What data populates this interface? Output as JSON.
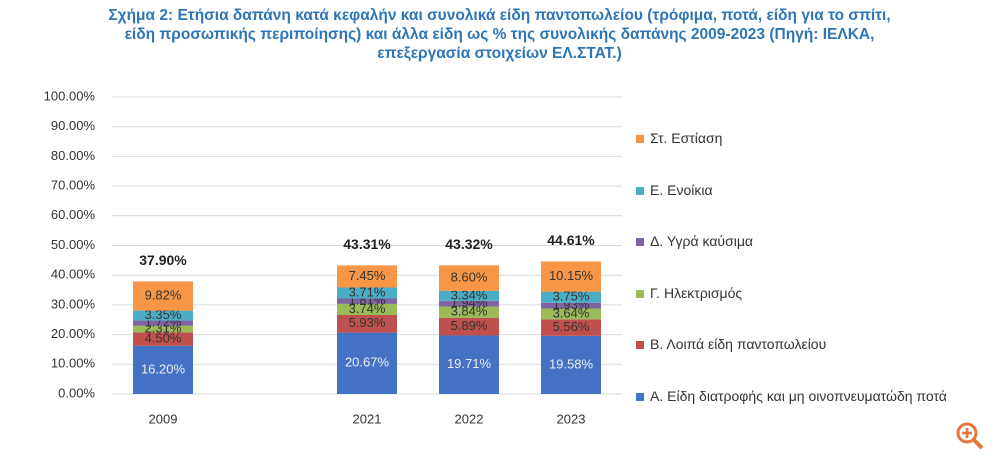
{
  "chart_data": {
    "type": "stacked_bar",
    "title_lines": [
      "Σχήμα 2: Ετήσια δαπάνη κατά κεφαλήν και συνολικά είδη παντοπωλείου (τρόφιμα, ποτά, είδη για το σπίτι,",
      "είδη προσωπικής περιποίησης) και άλλα είδη ως % της συνολικής δαπάνης 2009-2023 (Πηγή: ΙΕΛΚΑ,",
      "επεξεργασία στοιχείων ΕΛ.ΣΤΑΤ.)"
    ],
    "categories": [
      "2009",
      null,
      "2021",
      "2022",
      "2023"
    ],
    "series": [
      {
        "name": "Α. Είδη διατροφής και μη οινοπνευματώδη ποτά",
        "color": "#4472c4",
        "values": [
          16.2,
          null,
          20.67,
          19.71,
          19.58
        ],
        "value_labels": [
          "16.20%",
          null,
          "20.67%",
          "19.71%",
          "19.58%"
        ]
      },
      {
        "name": "Β. Λοιπά είδη παντοπωλείου",
        "color": "#c0504d",
        "values": [
          4.5,
          null,
          5.93,
          5.89,
          5.56
        ],
        "value_labels": [
          "4.50%",
          null,
          "5.93%",
          "5.89%",
          "5.56%"
        ]
      },
      {
        "name": "Γ. Ηλεκτρισμός",
        "color": "#9bbb59",
        "values": [
          2.31,
          null,
          3.74,
          3.84,
          3.64
        ],
        "value_labels": [
          "2.31%",
          null,
          "3.74%",
          "3.84%",
          "3.64%"
        ]
      },
      {
        "name": "Δ. Υγρά καύσιμα",
        "color": "#8064a2",
        "values": [
          1.72,
          null,
          1.81,
          1.94,
          1.93
        ],
        "value_labels": [
          "1.72%",
          null,
          "1.81%",
          "1.94%",
          "1.93%"
        ]
      },
      {
        "name": "Ε. Ενοίκια",
        "color": "#4bacc6",
        "values": [
          3.35,
          null,
          3.71,
          3.34,
          3.75
        ],
        "value_labels": [
          "3.35%",
          null,
          "3.71%",
          "3.34%",
          "3.75%"
        ]
      },
      {
        "name": "Στ. Εστίαση",
        "color": "#f79646",
        "values": [
          9.82,
          null,
          7.45,
          8.6,
          10.15
        ],
        "value_labels": [
          "9.82%",
          null,
          "7.45%",
          "8.60%",
          "10.15%"
        ]
      }
    ],
    "totals": [
      37.9,
      null,
      43.31,
      43.32,
      44.61
    ],
    "total_labels": [
      "37.90%",
      null,
      "43.31%",
      "43.32%",
      "44.61%"
    ],
    "ylim": [
      0,
      100
    ],
    "yticks": [
      {
        "value": 0,
        "label": "0.00%"
      },
      {
        "value": 10,
        "label": "10.00%"
      },
      {
        "value": 20,
        "label": "20.00%"
      },
      {
        "value": 30,
        "label": "30.00%"
      },
      {
        "value": 40,
        "label": "40.00%"
      },
      {
        "value": 50,
        "label": "50.00%"
      },
      {
        "value": 60,
        "label": "60.00%"
      },
      {
        "value": 70,
        "label": "70.00%"
      },
      {
        "value": 80,
        "label": "80.00%"
      },
      {
        "value": 90,
        "label": "90.00%"
      },
      {
        "value": 100,
        "label": "100.00%"
      }
    ],
    "grid": true
  }
}
